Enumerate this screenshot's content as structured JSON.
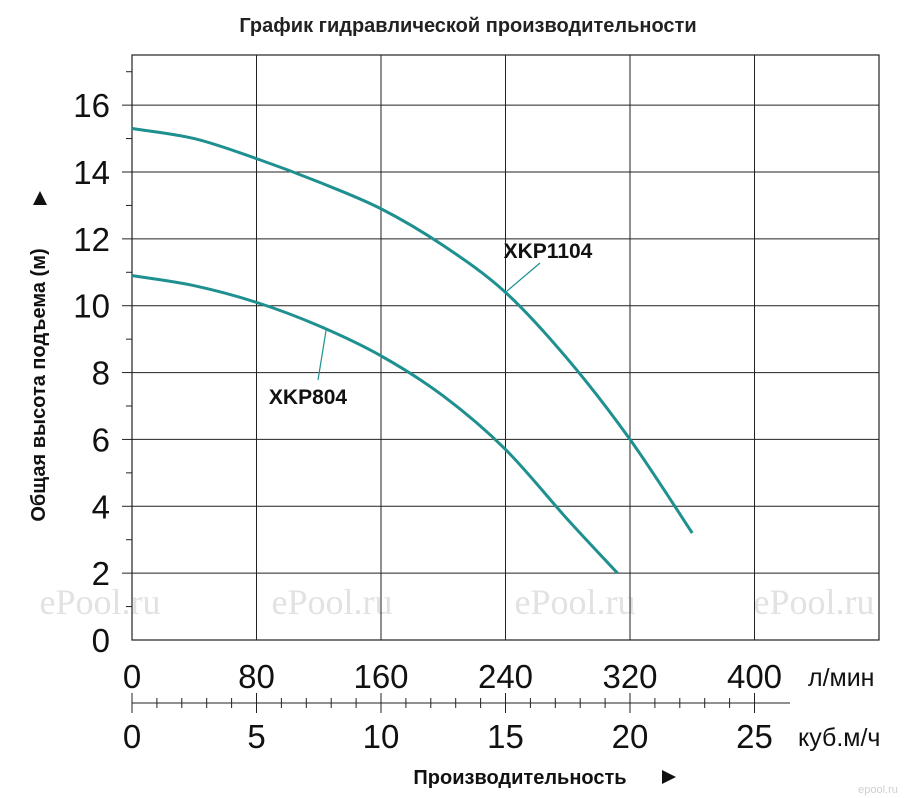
{
  "chart_data": {
    "type": "line",
    "title": "График гидравлической производительности",
    "ylabel": "Общая высота подъема (м)",
    "xlabel": "Производительность",
    "ylim": [
      0,
      17.5
    ],
    "xlim": [
      0,
      30
    ],
    "y_ticks": [
      0,
      2,
      4,
      6,
      8,
      10,
      12,
      14,
      16
    ],
    "x_ticks_lmin": [
      "0",
      "80",
      "160",
      "240",
      "320",
      "400"
    ],
    "x_unit_lmin": "л/мин",
    "x_ticks_m3h": [
      "0",
      "5",
      "10",
      "15",
      "20",
      "25"
    ],
    "x_unit_m3h": "куб.м/ч",
    "grid": true,
    "series": [
      {
        "name": "XKP1104",
        "color": "#1f9090",
        "x": [
          0,
          2.5,
          5,
          7.5,
          10,
          12.5,
          15,
          17.5,
          20,
          22.5
        ],
        "y": [
          15.3,
          15.0,
          14.4,
          13.7,
          12.9,
          11.8,
          10.4,
          8.4,
          6.0,
          3.2
        ]
      },
      {
        "name": "XKP804",
        "color": "#1f9090",
        "x": [
          0,
          2.5,
          5,
          7.5,
          10,
          12.5,
          15,
          17.5,
          19.5
        ],
        "y": [
          10.9,
          10.6,
          10.1,
          9.4,
          8.5,
          7.3,
          5.7,
          3.6,
          2.0
        ]
      }
    ]
  },
  "watermark": {
    "text": "ePool.ru",
    "small": "epool.ru"
  }
}
